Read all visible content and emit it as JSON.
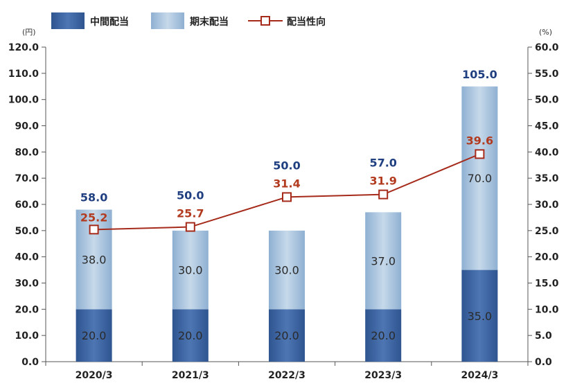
{
  "chart_data": {
    "type": "bar",
    "stacked": true,
    "categories": [
      "2020/3",
      "2021/3",
      "2022/3",
      "2023/3",
      "2024/3"
    ],
    "series": [
      {
        "name": "中間配当",
        "type": "bar",
        "axis": "left",
        "values": [
          20.0,
          20.0,
          20.0,
          20.0,
          35.0
        ],
        "color": "#3f66a3"
      },
      {
        "name": "期末配当",
        "type": "bar",
        "axis": "left",
        "values": [
          38.0,
          30.0,
          30.0,
          37.0,
          70.0
        ],
        "color": "#a9c3dd"
      },
      {
        "name": "配当性向",
        "type": "line",
        "axis": "right",
        "values": [
          25.2,
          25.7,
          31.4,
          31.9,
          39.6
        ],
        "color": "#a52a1a"
      }
    ],
    "totals": [
      58.0,
      50.0,
      50.0,
      57.0,
      105.0
    ],
    "left_axis": {
      "unit": "(円)",
      "ylim": [
        0,
        120
      ],
      "ticks": [
        "0.0",
        "10.0",
        "20.0",
        "30.0",
        "40.0",
        "50.0",
        "60.0",
        "70.0",
        "80.0",
        "90.0",
        "100.0",
        "110.0",
        "120.0"
      ]
    },
    "right_axis": {
      "unit": "(%)",
      "ylim": [
        0,
        60
      ],
      "ticks": [
        "0.0",
        "5.0",
        "10.0",
        "15.0",
        "20.0",
        "25.0",
        "30.0",
        "35.0",
        "40.0",
        "45.0",
        "50.0",
        "55.0",
        "60.0"
      ]
    },
    "legend_position": "top-left",
    "grid": false
  }
}
